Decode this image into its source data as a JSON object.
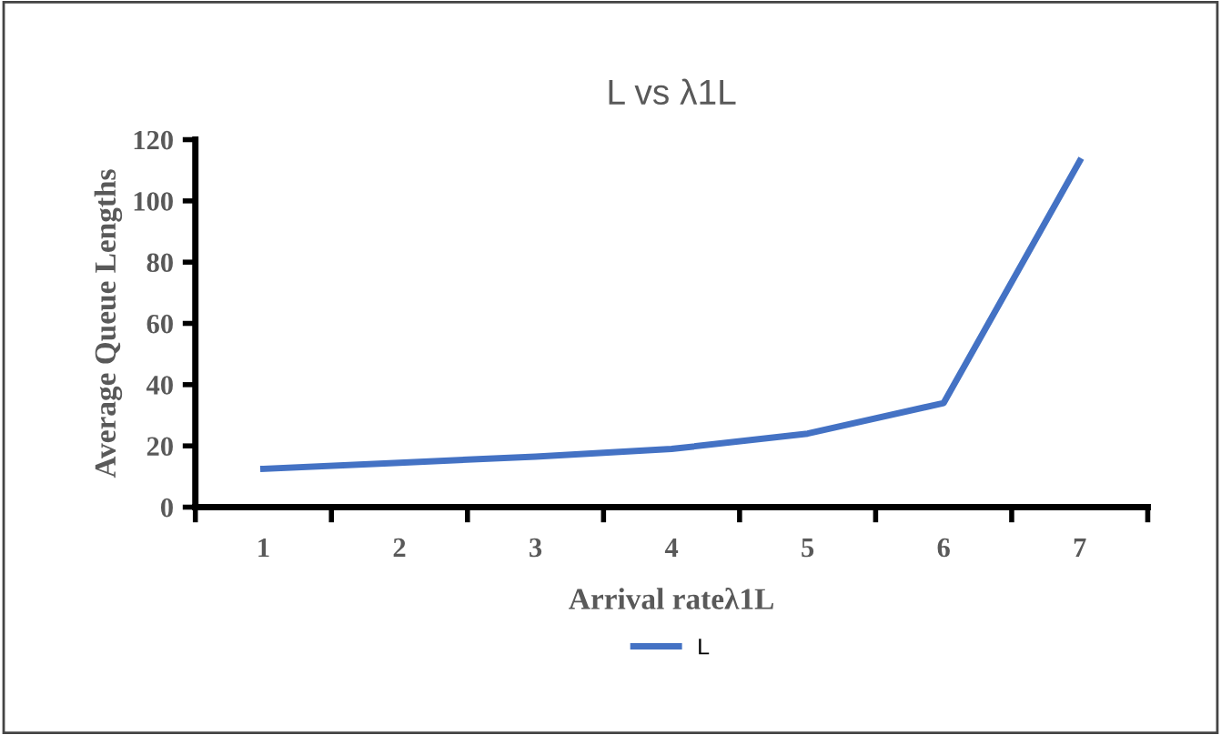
{
  "chart_data": {
    "type": "line",
    "title": "L vs λ1L",
    "xlabel": "Arrival rateλ1L",
    "ylabel": "Average Queue Lengths",
    "categories": [
      "1",
      "2",
      "3",
      "4",
      "5",
      "6",
      "7"
    ],
    "series": [
      {
        "name": "L",
        "color": "#4472c4",
        "values": [
          12.5,
          14.5,
          16.5,
          19,
          24,
          34,
          113
        ]
      }
    ],
    "ylim": [
      0,
      120
    ],
    "yticks": [
      0,
      20,
      40,
      60,
      80,
      100,
      120
    ],
    "grid": false,
    "legend": "bottom",
    "marker": "none",
    "line_style": "solid"
  }
}
